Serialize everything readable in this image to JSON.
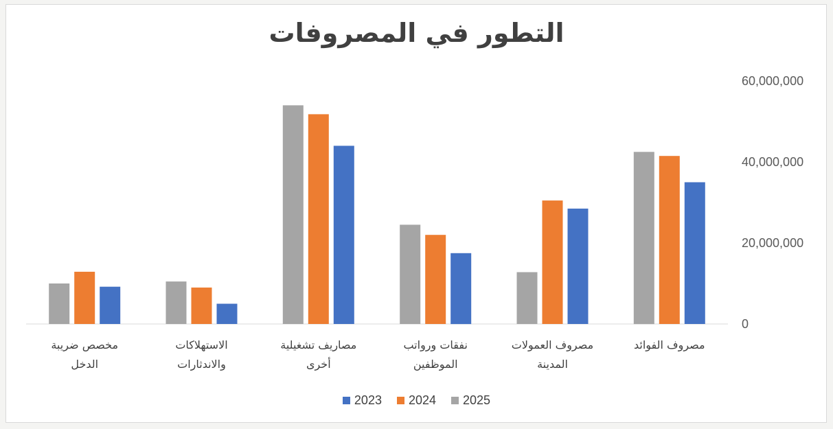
{
  "chart_data": {
    "type": "bar",
    "title": "التطور في المصروفات",
    "categories": [
      [
        "مصروف الفوائد"
      ],
      [
        "مصروف العمولات",
        "المدينة"
      ],
      [
        "نفقات ورواتب",
        "الموظفين"
      ],
      [
        "مصاريف تشغيلية",
        "أخرى"
      ],
      [
        "الاستهلاكات",
        "والاندثارات"
      ],
      [
        "مخصص ضريبة",
        "الدخل"
      ]
    ],
    "series": [
      {
        "name": "2025",
        "color": "#a5a5a5",
        "values": [
          42500000,
          12800000,
          24500000,
          54000000,
          10500000,
          10000000
        ]
      },
      {
        "name": "2024",
        "color": "#ed7d31",
        "values": [
          41500000,
          30500000,
          22000000,
          51800000,
          9000000,
          12900000
        ]
      },
      {
        "name": "2023",
        "color": "#4472c4",
        "values": [
          35000000,
          28500000,
          17500000,
          44000000,
          5000000,
          9200000
        ]
      }
    ],
    "legend_order": [
      "2023",
      "2024",
      "2025"
    ],
    "yticks": [
      "0",
      "20,000,000",
      "40,000,000",
      "60,000,000"
    ],
    "ylim": [
      0,
      60000000
    ],
    "category_order": "right-to-left",
    "y_axis_position": "right",
    "legend_position": "bottom",
    "gridlines": false
  }
}
